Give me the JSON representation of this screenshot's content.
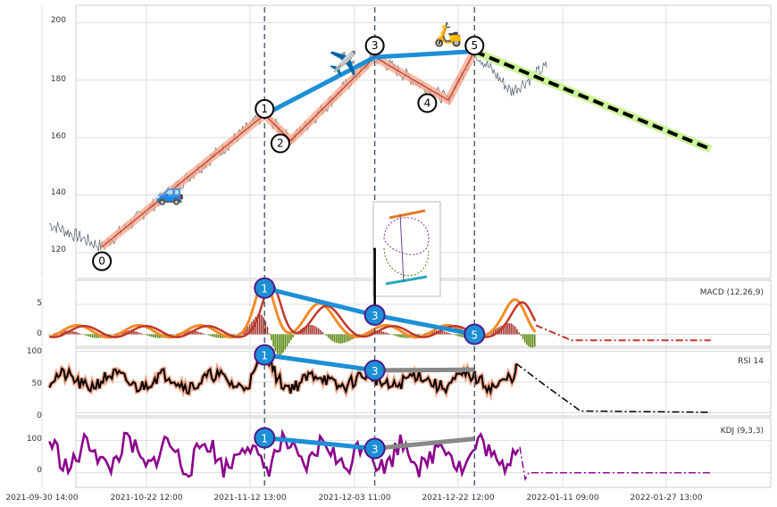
{
  "chart_data": {
    "type": "line",
    "x_ticks": [
      "2021-09-30 14:00",
      "2021-10-22 12:00",
      "2021-11-12 13:00",
      "2021-12-03 11:00",
      "2021-12-22 12:00",
      "2022-01-11 09:00",
      "2022-01-27 13:00"
    ],
    "grid": true,
    "legend": "none",
    "main": {
      "yticks": [
        120,
        140,
        160,
        180,
        200
      ],
      "ylim": [
        111,
        206
      ],
      "wave_points": [
        {
          "label": "0",
          "x": "2021-10-12",
          "y": 122
        },
        {
          "label": "1",
          "x": "2021-11-12",
          "y": 168
        },
        {
          "label": "2",
          "x": "2021-11-17",
          "y": 159
        },
        {
          "label": "3",
          "x": "2021-12-03",
          "y": 188
        },
        {
          "label": "4",
          "x": "2021-12-17",
          "y": 173
        },
        {
          "label": "5",
          "x": "2021-12-22",
          "y": 190
        }
      ],
      "wave_markers": [
        {
          "label": "0",
          "x": "2021-10-12",
          "y": 117
        },
        {
          "label": "1",
          "x": "2021-11-12",
          "y": 170
        },
        {
          "label": "2",
          "x": "2021-11-15",
          "y": 158
        },
        {
          "label": "3",
          "x": "2021-12-03",
          "y": 192
        },
        {
          "label": "4",
          "x": "2021-12-13",
          "y": 172
        },
        {
          "label": "5",
          "x": "2021-12-22",
          "y": 192
        }
      ],
      "trend_line": [
        {
          "x": "2021-11-12",
          "y": 168
        },
        {
          "x": "2021-12-03",
          "y": 188
        },
        {
          "x": "2021-12-22",
          "y": 190
        }
      ],
      "forecast": [
        {
          "x": "2021-12-22",
          "y": 190
        },
        {
          "x": "2022-02-05",
          "y": 156
        }
      ],
      "vlines": [
        "2021-11-12",
        "2021-12-03",
        "2021-12-22"
      ],
      "icons": [
        "car-icon",
        "airplane-icon",
        "scooter-icon"
      ],
      "colors": {
        "price": "#5f6b78",
        "wave": "#f4a78a",
        "trend": "#1d8fd6",
        "forecast": "#000000",
        "forecast_glow": "#ccf59a"
      }
    },
    "macd": {
      "label": "MACD (12,26,9)",
      "yticks": [
        0,
        5
      ],
      "ylim": [
        -2,
        9
      ],
      "markers": [
        {
          "label": "1",
          "x": "2021-11-12",
          "y": 7.7
        },
        {
          "label": "3",
          "x": "2021-12-03",
          "y": 3.2
        },
        {
          "label": "5",
          "x": "2021-12-22",
          "y": 0
        }
      ],
      "colors": {
        "macd": "#f28c28",
        "signal": "#c0392b",
        "hist_pos": "#a5362d",
        "hist_neg": "#5a8a10"
      }
    },
    "rsi": {
      "label": "RSI 14",
      "yticks": [
        0,
        50,
        100
      ],
      "ylim": [
        -5,
        105
      ],
      "markers": [
        {
          "label": "1",
          "x": "2021-11-12",
          "y": 94
        },
        {
          "label": "3",
          "x": "2021-12-03",
          "y": 69
        }
      ],
      "colors": {
        "line": "#000000",
        "glow": "#f4a78a",
        "trend": "#888888"
      }
    },
    "kdj": {
      "label": "KDJ (9,3,3)",
      "yticks": [
        0,
        100
      ],
      "ylim": [
        -45,
        170
      ],
      "markers": [
        {
          "label": "1",
          "x": "2021-11-12",
          "y": 108
        },
        {
          "label": "3",
          "x": "2021-12-03",
          "y": 75
        }
      ],
      "colors": {
        "line": "#8b008b",
        "trend": "#888888"
      }
    }
  }
}
